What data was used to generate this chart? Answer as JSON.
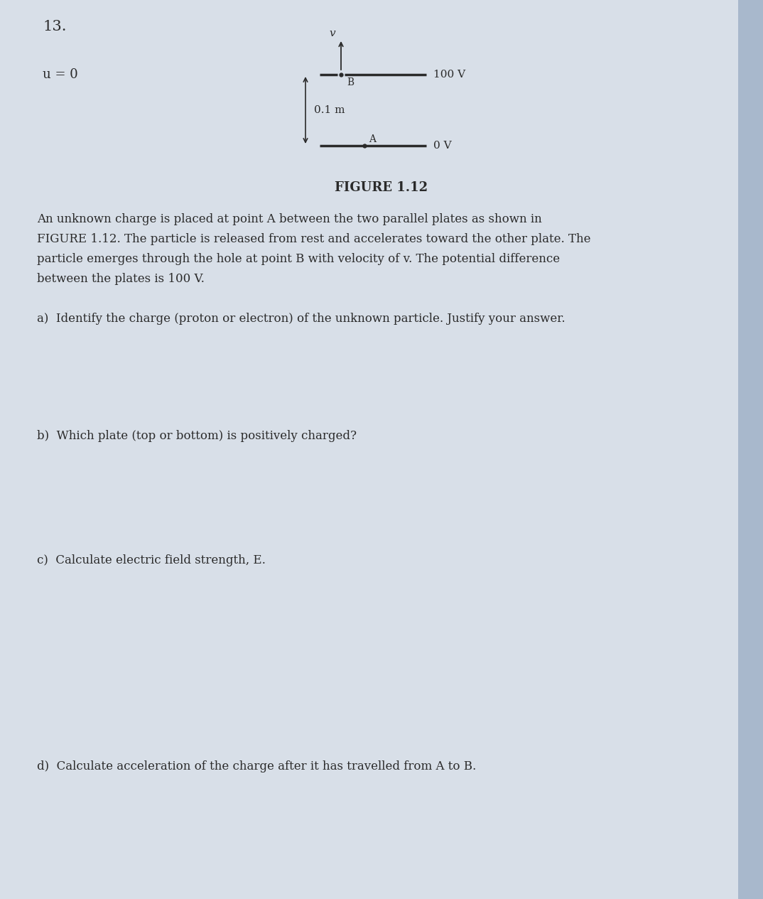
{
  "bg_color": "#d8dfe8",
  "page_color": "#e2e8f0",
  "text_color": "#2a2a2a",
  "question_number": "13.",
  "u_label": "u = 0",
  "figure_label": "FIGURE 1.12",
  "plate_top_label": "100 V",
  "plate_bottom_label": "0 V",
  "distance_label": "0.1 m",
  "point_B_label": "B",
  "point_A_label": "A",
  "velocity_label": "v",
  "desc_line1": "An unknown charge is placed at point A between the two parallel plates as shown in",
  "desc_line2": "FIGURE 1.12. The particle is released from rest and accelerates toward the other plate. The",
  "desc_line3": "particle emerges through the hole at point B with velocity of v. The potential difference",
  "desc_line4": "between the plates is 100 V.",
  "q_a": "a)  Identify the charge (proton or electron) of the unknown particle. Justify your answer.",
  "q_b": "b)  Which plate (top or bottom) is positively charged?",
  "q_c": "c)  Calculate electric field strength, E.",
  "q_d": "d)  Calculate acceleration of the charge after it has travelled from A to B.",
  "fig_width": 10.74,
  "fig_height": 12.65,
  "dpi": 100
}
